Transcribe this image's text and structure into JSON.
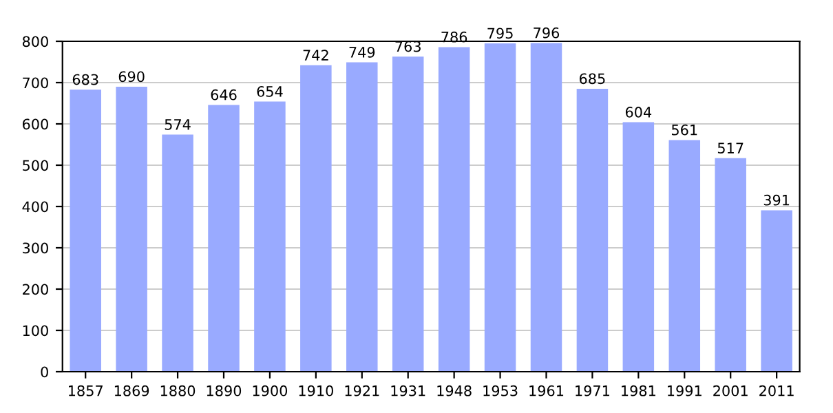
{
  "chart_data": {
    "type": "bar",
    "categories": [
      "1857",
      "1869",
      "1880",
      "1890",
      "1900",
      "1910",
      "1921",
      "1931",
      "1948",
      "1953",
      "1961",
      "1971",
      "1981",
      "1991",
      "2001",
      "2011"
    ],
    "values": [
      683,
      690,
      574,
      646,
      654,
      742,
      749,
      763,
      786,
      795,
      796,
      685,
      604,
      561,
      517,
      391
    ],
    "color": "#99aaff",
    "ylim": [
      0,
      800
    ],
    "yticks": [
      0,
      100,
      200,
      300,
      400,
      500,
      600,
      700,
      800
    ],
    "grid": "y",
    "data_labels": true,
    "legend": false
  }
}
